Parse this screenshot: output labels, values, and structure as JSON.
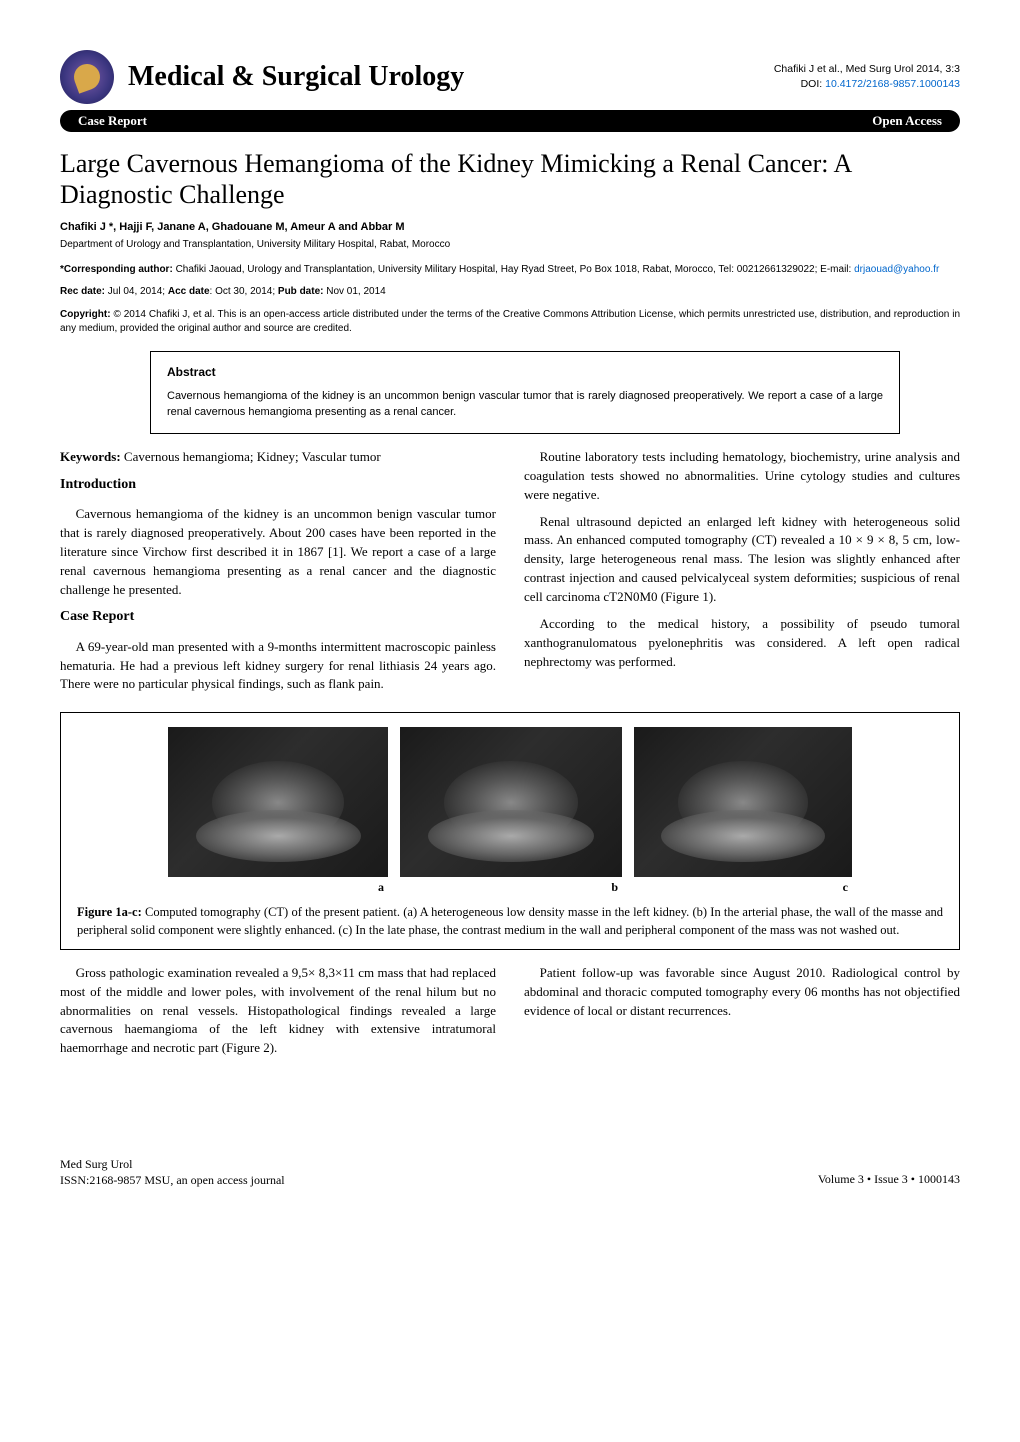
{
  "header": {
    "journal_name": "Medical & Surgical Urology",
    "citation": "Chafiki J et al., Med Surg Urol 2014, 3:3",
    "doi_label": "DOI:",
    "doi_value": "10.4172/2168-9857.1000143"
  },
  "black_bar": {
    "left": "Case Report",
    "right": "Open Access"
  },
  "article": {
    "title": "Large Cavernous Hemangioma of the Kidney Mimicking a Renal Cancer: A Diagnostic Challenge",
    "authors_html": "Chafiki J *, Hajji F, Janane A, Ghadouane M, Ameur A and Abbar M",
    "affiliation": "Department of Urology and Transplantation, University Military Hospital, Rabat, Morocco",
    "corresponding_label": "*Corresponding author:",
    "corresponding_text": "Chafiki Jaouad, Urology and Transplantation, University Military Hospital, Hay Ryad Street, Po Box 1018, Rabat, Morocco, Tel: 00212661329022; E-mail:",
    "corresponding_email": "drjaouad@yahoo.fr",
    "dates_html": "Rec date: Jul 04, 2014; Acc date: Oct 30, 2014; Pub date: Nov 01, 2014",
    "copyright_label": "Copyright:",
    "copyright_text": "© 2014 Chafiki J, et al. This is an open-access article distributed under the terms of the Creative Commons Attribution License, which permits unrestricted use, distribution, and reproduction in any medium, provided the original author and source are credited."
  },
  "abstract": {
    "heading": "Abstract",
    "text": "Cavernous hemangioma of the kidney is an uncommon benign vascular tumor that is rarely diagnosed preoperatively. We report a case of a large renal cavernous hemangioma presenting as a renal cancer."
  },
  "keywords": {
    "label": "Keywords:",
    "text": "Cavernous hemangioma; Kidney; Vascular tumor"
  },
  "sections": {
    "introduction_heading": "Introduction",
    "introduction_p1": "Cavernous hemangioma of the kidney is an uncommon benign vascular tumor that is rarely diagnosed preoperatively. About 200 cases have been reported in the literature since Virchow first described it in 1867 [1]. We report a case of a large renal cavernous hemangioma presenting as a renal cancer and the diagnostic challenge he presented.",
    "case_heading": "Case Report",
    "case_p1": "A 69-year-old man presented with a 9-months intermittent macroscopic painless hematuria. He had a previous left kidney surgery for renal lithiasis 24 years ago. There were no particular physical findings, such as flank pain.",
    "right_p1": "Routine laboratory tests including hematology, biochemistry, urine analysis and coagulation tests showed no abnormalities. Urine cytology studies and cultures were negative.",
    "right_p2": "Renal ultrasound depicted an enlarged left kidney with heterogeneous solid mass. An enhanced computed tomography (CT) revealed a 10 × 9 × 8, 5 cm, low-density, large heterogeneous renal mass. The lesion was slightly enhanced after contrast injection and caused pelvicalyceal system deformities; suspicious of renal cell carcinoma cT2N0M0 (Figure 1).",
    "right_p3": "According to the medical history, a possibility of pseudo tumoral xanthogranulomatous pyelonephritis was considered. A left open radical nephrectomy was performed."
  },
  "figure": {
    "label_a": "a",
    "label_b": "b",
    "label_c": "c",
    "caption_label": "Figure 1a-c:",
    "caption_text": "Computed tomography (CT) of the present patient. (a) A heterogeneous low density masse in the left kidney. (b) In the arterial phase, the wall of the masse and peripheral solid component were slightly enhanced. (c) In the late phase, the contrast medium in the wall and peripheral component of the mass was not washed out."
  },
  "postfigure": {
    "left_p1": "Gross pathologic examination revealed a 9,5× 8,3×11 cm mass that had replaced most of the middle and lower poles, with involvement of the renal hilum but no abnormalities on renal vessels. Histopathological findings revealed a large cavernous haemangioma of the left kidney with extensive intratumoral haemorrhage and necrotic part (Figure 2).",
    "right_p1": "Patient follow-up was favorable since August 2010. Radiological control by abdominal and thoracic computed tomography every 06 months has not objectified evidence of local or distant recurrences."
  },
  "footer": {
    "left_line1": "Med Surg Urol",
    "left_line2": "ISSN:2168-9857 MSU, an open access journal",
    "right": "Volume 3 • Issue 3 • 1000143"
  },
  "colors": {
    "link": "#0066cc",
    "text": "#000000",
    "background": "#ffffff",
    "bar": "#000000"
  }
}
